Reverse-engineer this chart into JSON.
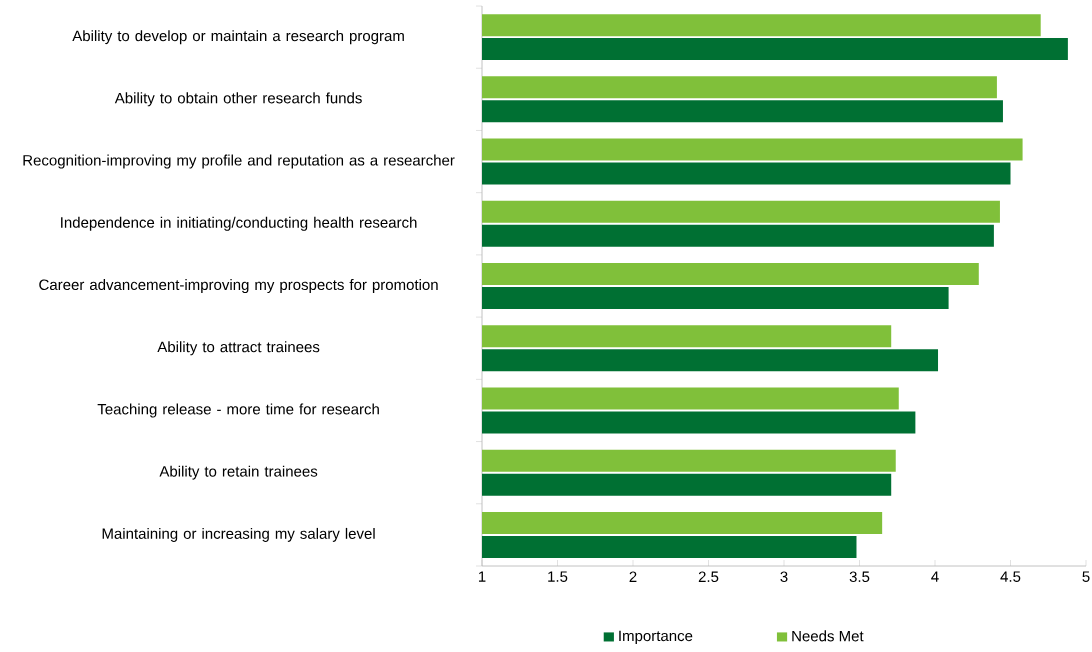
{
  "chart_data": {
    "type": "bar",
    "orientation": "horizontal",
    "categories": [
      "Ability to develop or maintain a research program",
      "Ability to obtain other research funds",
      "Recognition-improving my profile and reputation as a researcher",
      "Independence in initiating/conducting health research",
      "Career advancement-improving my prospects for promotion",
      "Ability to attract trainees",
      "Teaching release - more time for research",
      "Ability to retain trainees",
      "Maintaining or increasing my salary level"
    ],
    "series": [
      {
        "name": "Importance",
        "color": "#007033",
        "values": [
          4.88,
          4.45,
          4.5,
          4.39,
          4.09,
          4.02,
          3.87,
          3.71,
          3.48
        ]
      },
      {
        "name": "Needs Met",
        "color": "#80c03a",
        "values": [
          4.7,
          4.41,
          4.58,
          4.43,
          4.29,
          3.71,
          3.76,
          3.74,
          3.65
        ]
      }
    ],
    "xlim": [
      1,
      5
    ],
    "xticks": [
      1,
      1.5,
      2,
      2.5,
      3,
      3.5,
      4,
      4.5,
      5
    ],
    "legend": "bottom",
    "grid": false
  }
}
